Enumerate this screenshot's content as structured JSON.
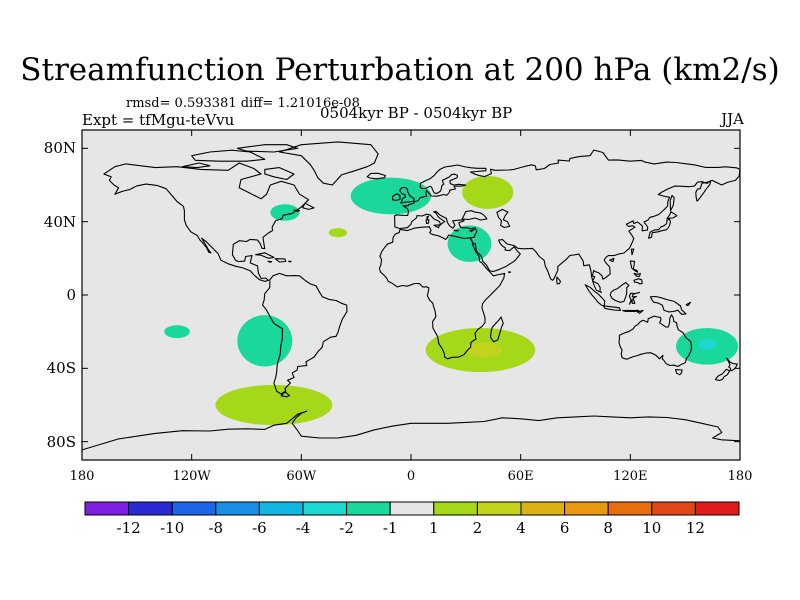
{
  "title": "Streamfunction Perturbation at 200 hPa (km2/s)",
  "stats": "rmsd= 0.593381 diff= 1.21016e-08",
  "experiment": "Expt = tfMgu-teVvu",
  "period": "0504kyr BP - 0504kyr BP",
  "season": "JJA",
  "colors": {
    "ocean_land": "#e6e6e6",
    "coast": "#000000"
  },
  "chart_data": {
    "type": "heatmap",
    "projection": "cylindrical-equidistant",
    "xlim": [
      -180,
      180
    ],
    "ylim": [
      -90,
      90
    ],
    "y_ticks": [
      {
        "value": 80,
        "label": "80N"
      },
      {
        "value": 40,
        "label": "40N"
      },
      {
        "value": 0,
        "label": "0"
      },
      {
        "value": -40,
        "label": "40S"
      },
      {
        "value": -80,
        "label": "80S"
      }
    ],
    "x_ticks": [
      {
        "value": -180,
        "label": "180"
      },
      {
        "value": -120,
        "label": "120W"
      },
      {
        "value": -60,
        "label": "60W"
      },
      {
        "value": 0,
        "label": "0"
      },
      {
        "value": 60,
        "label": "60E"
      },
      {
        "value": 120,
        "label": "120E"
      },
      {
        "value": 180,
        "label": "180"
      }
    ],
    "colorbar": {
      "colors": [
        "#7f1fe0",
        "#2a2ad4",
        "#1e64e6",
        "#1c8ee6",
        "#12b6e0",
        "#1cd8cf",
        "#1ad79b",
        "#e6e6e6",
        "#a6d81a",
        "#c3d21a",
        "#dbb213",
        "#e89911",
        "#e66e0f",
        "#e04818",
        "#e21c1c"
      ],
      "labels": [
        "-12",
        "-10",
        "-8",
        "-6",
        "-4",
        "-2",
        "-1",
        "1",
        "2",
        "4",
        "6",
        "8",
        "10",
        "12"
      ]
    },
    "anomalies": [
      {
        "lon": -80,
        "lat": -25,
        "rx": 15,
        "ry": 14,
        "value": -1.5
      },
      {
        "lon": -128,
        "lat": -20,
        "rx": 7,
        "ry": 3.5,
        "value": -1.5
      },
      {
        "lon": -75,
        "lat": -60,
        "rx": 32,
        "ry": 11,
        "value": 1.5
      },
      {
        "lon": -69,
        "lat": 45,
        "rx": 8,
        "ry": 4.5,
        "value": -1.5
      },
      {
        "lon": -40,
        "lat": 34,
        "rx": 5,
        "ry": 2.5,
        "value": 1.5
      },
      {
        "lon": -11,
        "lat": 54,
        "rx": 22,
        "ry": 10,
        "value": -1.5
      },
      {
        "lon": 42,
        "lat": 56,
        "rx": 14,
        "ry": 9,
        "value": 1.5
      },
      {
        "lon": 32,
        "lat": 28,
        "rx": 12,
        "ry": 10,
        "value": -1.5
      },
      {
        "lon": 38,
        "lat": -30,
        "rx": 30,
        "ry": 12,
        "value": 1.5
      },
      {
        "lon": 40,
        "lat": -30,
        "rx": 10,
        "ry": 4,
        "value": 3
      },
      {
        "lon": 162,
        "lat": -28,
        "rx": 17,
        "ry": 10,
        "value": -1.5
      },
      {
        "lon": 162,
        "lat": -27,
        "rx": 5,
        "ry": 3,
        "value": -3
      }
    ]
  }
}
